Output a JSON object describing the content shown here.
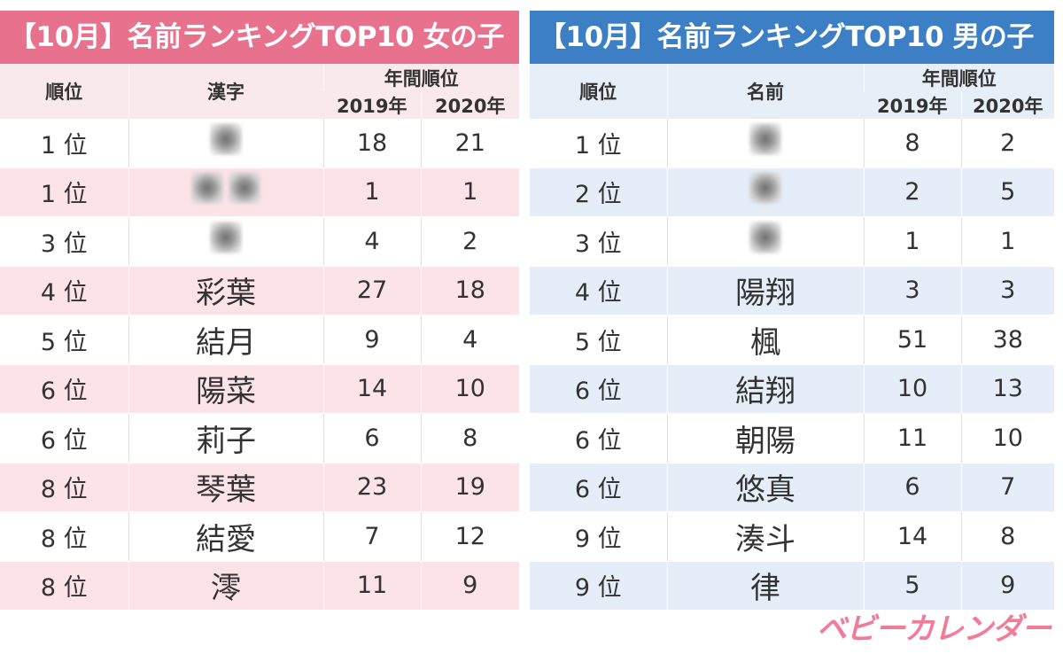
{
  "colors": {
    "girls_accent": "#e8718d",
    "boys_accent": "#3d7fc4",
    "logo": "#f07c9a"
  },
  "girls": {
    "title": "【10月】名前ランキングTOP10 女の子",
    "headers": {
      "rank": "順位",
      "name": "漢字",
      "annual": "年間順位",
      "y2019": "2019年",
      "y2020": "2020年"
    },
    "rows": [
      {
        "rank": "1 位",
        "name": "",
        "blurred_chars": 1,
        "y2019": "18",
        "y2020": "21"
      },
      {
        "rank": "1 位",
        "name": "",
        "blurred_chars": 2,
        "y2019": "1",
        "y2020": "1"
      },
      {
        "rank": "3 位",
        "name": "",
        "blurred_chars": 1,
        "y2019": "4",
        "y2020": "2"
      },
      {
        "rank": "4 位",
        "name": "彩葉",
        "y2019": "27",
        "y2020": "18"
      },
      {
        "rank": "5 位",
        "name": "結月",
        "y2019": "9",
        "y2020": "4"
      },
      {
        "rank": "6 位",
        "name": "陽菜",
        "y2019": "14",
        "y2020": "10"
      },
      {
        "rank": "6 位",
        "name": "莉子",
        "y2019": "6",
        "y2020": "8"
      },
      {
        "rank": "8 位",
        "name": "琴葉",
        "y2019": "23",
        "y2020": "19"
      },
      {
        "rank": "8 位",
        "name": "結愛",
        "y2019": "7",
        "y2020": "12"
      },
      {
        "rank": "8 位",
        "name": "澪",
        "y2019": "11",
        "y2020": "9"
      }
    ]
  },
  "boys": {
    "title": "【10月】名前ランキングTOP10 男の子",
    "headers": {
      "rank": "順位",
      "name": "名前",
      "annual": "年間順位",
      "y2019": "2019年",
      "y2020": "2020年"
    },
    "rows": [
      {
        "rank": "1 位",
        "name": "",
        "blurred_chars": 1,
        "y2019": "8",
        "y2020": "2"
      },
      {
        "rank": "2 位",
        "name": "",
        "blurred_chars": 1,
        "y2019": "2",
        "y2020": "5"
      },
      {
        "rank": "3 位",
        "name": "",
        "blurred_chars": 1,
        "y2019": "1",
        "y2020": "1"
      },
      {
        "rank": "4 位",
        "name": "陽翔",
        "y2019": "3",
        "y2020": "3"
      },
      {
        "rank": "5 位",
        "name": "楓",
        "y2019": "51",
        "y2020": "38"
      },
      {
        "rank": "6 位",
        "name": "結翔",
        "y2019": "10",
        "y2020": "13"
      },
      {
        "rank": "6 位",
        "name": "朝陽",
        "y2019": "11",
        "y2020": "10"
      },
      {
        "rank": "6 位",
        "name": "悠真",
        "y2019": "6",
        "y2020": "7"
      },
      {
        "rank": "9 位",
        "name": "湊斗",
        "y2019": "14",
        "y2020": "8"
      },
      {
        "rank": "9 位",
        "name": "律",
        "y2019": "5",
        "y2020": "9"
      }
    ]
  },
  "logo": "ベビーカレンダー"
}
